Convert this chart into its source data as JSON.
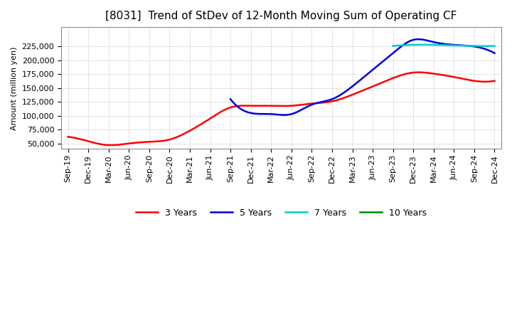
{
  "title": "[8031]  Trend of StDev of 12-Month Moving Sum of Operating CF",
  "ylabel": "Amount (million yen)",
  "background_color": "#ffffff",
  "plot_bg_color": "#ffffff",
  "grid_color": "#aaaaaa",
  "title_fontsize": 11,
  "axis_fontsize": 8,
  "legend_fontsize": 9,
  "ylim": [
    40000,
    260000
  ],
  "yticks": [
    50000,
    75000,
    100000,
    125000,
    150000,
    175000,
    200000,
    225000
  ],
  "series": {
    "3 Years": {
      "color": "#ff0000",
      "linewidth": 1.8,
      "dates_months": [
        0,
        3,
        6,
        9,
        12,
        15,
        18,
        21,
        24,
        27,
        30,
        33,
        36,
        39,
        42,
        45,
        48,
        51,
        54,
        57,
        60,
        63
      ],
      "values": [
        62000,
        54000,
        47000,
        50000,
        53000,
        57000,
        73000,
        95000,
        115000,
        118000,
        118000,
        118000,
        122000,
        126000,
        138000,
        153000,
        168000,
        178000,
        176000,
        170000,
        163000,
        163000
      ]
    },
    "5 Years": {
      "color": "#0000dd",
      "linewidth": 1.8,
      "dates_months": [
        24,
        27,
        30,
        33,
        36,
        39,
        42,
        45,
        48,
        51,
        54,
        57,
        60,
        63
      ],
      "values": [
        130000,
        105000,
        103000,
        103000,
        120000,
        130000,
        153000,
        183000,
        213000,
        237000,
        233000,
        228000,
        225000,
        213000
      ]
    },
    "7 Years": {
      "color": "#00cccc",
      "linewidth": 1.8,
      "dates_months": [
        48,
        51,
        54,
        57,
        60,
        63
      ],
      "values": [
        226000,
        228000,
        228000,
        227000,
        226000,
        226000
      ]
    },
    "10 Years": {
      "color": "#008800",
      "linewidth": 1.8,
      "dates_months": [],
      "values": []
    }
  },
  "xtick_labels": [
    "Sep-19",
    "Dec-19",
    "Mar-20",
    "Jun-20",
    "Sep-20",
    "Dec-20",
    "Mar-21",
    "Jun-21",
    "Sep-21",
    "Dec-21",
    "Mar-22",
    "Jun-22",
    "Sep-22",
    "Dec-22",
    "Mar-23",
    "Jun-23",
    "Sep-23",
    "Dec-23",
    "Mar-24",
    "Jun-24",
    "Sep-24",
    "Dec-24"
  ],
  "xtick_months": [
    0,
    3,
    6,
    9,
    12,
    15,
    18,
    21,
    24,
    27,
    30,
    33,
    36,
    39,
    42,
    45,
    48,
    51,
    54,
    57,
    60,
    63
  ]
}
